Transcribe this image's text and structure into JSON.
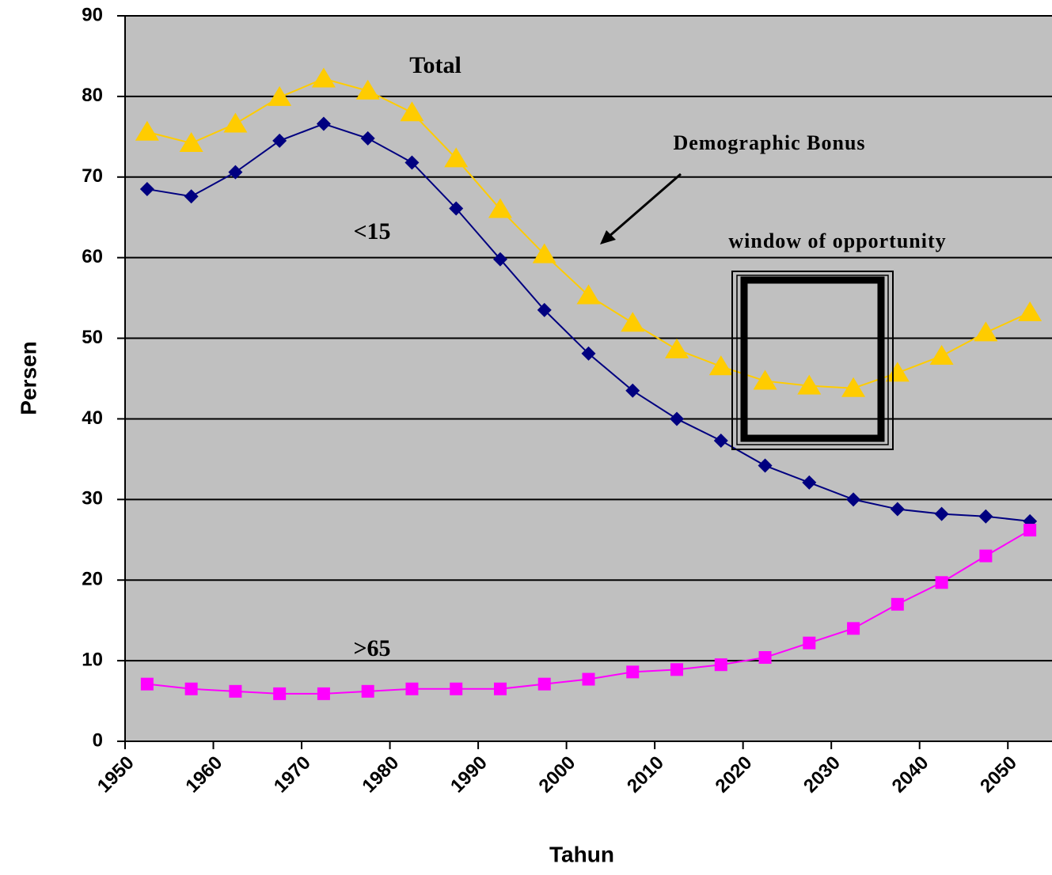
{
  "chart_data": {
    "type": "line",
    "x_label": "Tahun",
    "y_label": "Persen",
    "x": [
      1952.5,
      1957.5,
      1962.5,
      1967.5,
      1972.5,
      1977.5,
      1982.5,
      1987.5,
      1992.5,
      1997.5,
      2002.5,
      2007.5,
      2012.5,
      2017.5,
      2022.5,
      2027.5,
      2032.5,
      2037.5,
      2042.5,
      2047.5,
      2052.5
    ],
    "series": [
      {
        "name": "<15",
        "color": "#000080",
        "marker": "diamond",
        "values": [
          68.5,
          67.6,
          70.6,
          74.5,
          76.6,
          74.8,
          71.8,
          66.1,
          59.8,
          53.5,
          48.1,
          43.5,
          40.0,
          37.3,
          34.2,
          32.1,
          30.0,
          28.8,
          28.2,
          27.9,
          27.3
        ]
      },
      {
        "name": "Total",
        "color": "#ffcc00",
        "marker": "triangle",
        "values": [
          75.6,
          74.2,
          76.6,
          79.9,
          82.2,
          80.7,
          78.0,
          72.3,
          66.0,
          60.4,
          55.3,
          51.9,
          48.6,
          46.5,
          44.7,
          44.1,
          43.8,
          45.7,
          47.8,
          50.7,
          53.2
        ]
      },
      {
        "name": ">65",
        "color": "#ff00ff",
        "marker": "square",
        "values": [
          7.1,
          6.5,
          6.2,
          5.9,
          5.9,
          6.2,
          6.5,
          6.5,
          6.5,
          7.1,
          7.7,
          8.6,
          8.9,
          9.5,
          10.4,
          12.2,
          14.0,
          17.0,
          19.7,
          23.0,
          26.2
        ]
      }
    ],
    "xlim": [
      1950,
      2055
    ],
    "xticks": [
      1950,
      1960,
      1970,
      1980,
      1990,
      2000,
      2010,
      2020,
      2030,
      2040,
      2050
    ],
    "ylim": [
      0,
      90
    ],
    "yticks": [
      0,
      10,
      20,
      30,
      40,
      50,
      60,
      70,
      80,
      90
    ],
    "grid": true,
    "annotations": [
      "Demographic Bonus",
      "window of opportunity"
    ]
  }
}
